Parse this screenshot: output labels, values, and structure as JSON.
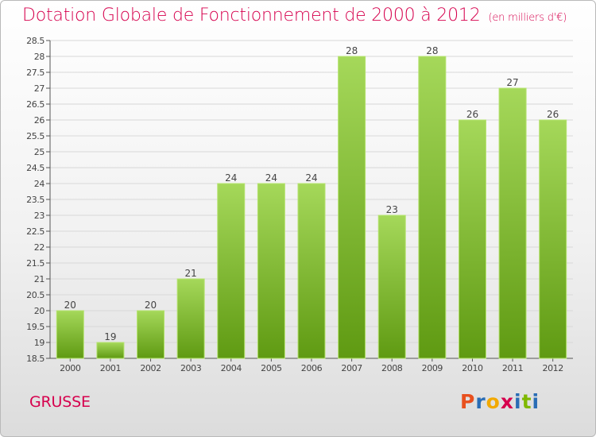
{
  "title": "Dotation Globale de Fonctionnement de 2000 à 2012",
  "subtitle": "(en milliers d'€)",
  "commune": "GRUSSE",
  "logo": {
    "letters": [
      "P",
      "r",
      "o",
      "x",
      "i",
      "t",
      "i"
    ],
    "colors": [
      "#e8501e",
      "#2a6db5",
      "#f2a900",
      "#d6004d",
      "#2a6db5",
      "#7fb800",
      "#2a6db5"
    ]
  },
  "colors": {
    "title": "#d6004d",
    "bar_light": "#a5d85a",
    "bar_dark": "#5f9a12"
  },
  "chart_data": {
    "type": "bar",
    "title": "Dotation Globale de Fonctionnement de 2000 à 2012",
    "subtitle": "(en milliers d'€)",
    "categories": [
      "2000",
      "2001",
      "2002",
      "2003",
      "2004",
      "2005",
      "2006",
      "2007",
      "2008",
      "2009",
      "2010",
      "2011",
      "2012"
    ],
    "values": [
      20,
      19,
      20,
      21,
      24,
      24,
      24,
      28,
      23,
      28,
      26,
      27,
      26
    ],
    "value_labels": [
      "20",
      "19",
      "20",
      "21",
      "24",
      "24",
      "24",
      "28",
      "23",
      "28",
      "26",
      "27",
      "26"
    ],
    "ylim": [
      18.5,
      28.5
    ],
    "yticks": [
      "18.5",
      "19",
      "19.5",
      "20",
      "20.5",
      "21",
      "21.5",
      "22",
      "22.5",
      "23",
      "23.5",
      "24",
      "24.5",
      "25",
      "25.5",
      "26",
      "26.5",
      "27",
      "27.5",
      "28",
      "28.5"
    ],
    "grid": true,
    "xlabel": "",
    "ylabel": ""
  }
}
